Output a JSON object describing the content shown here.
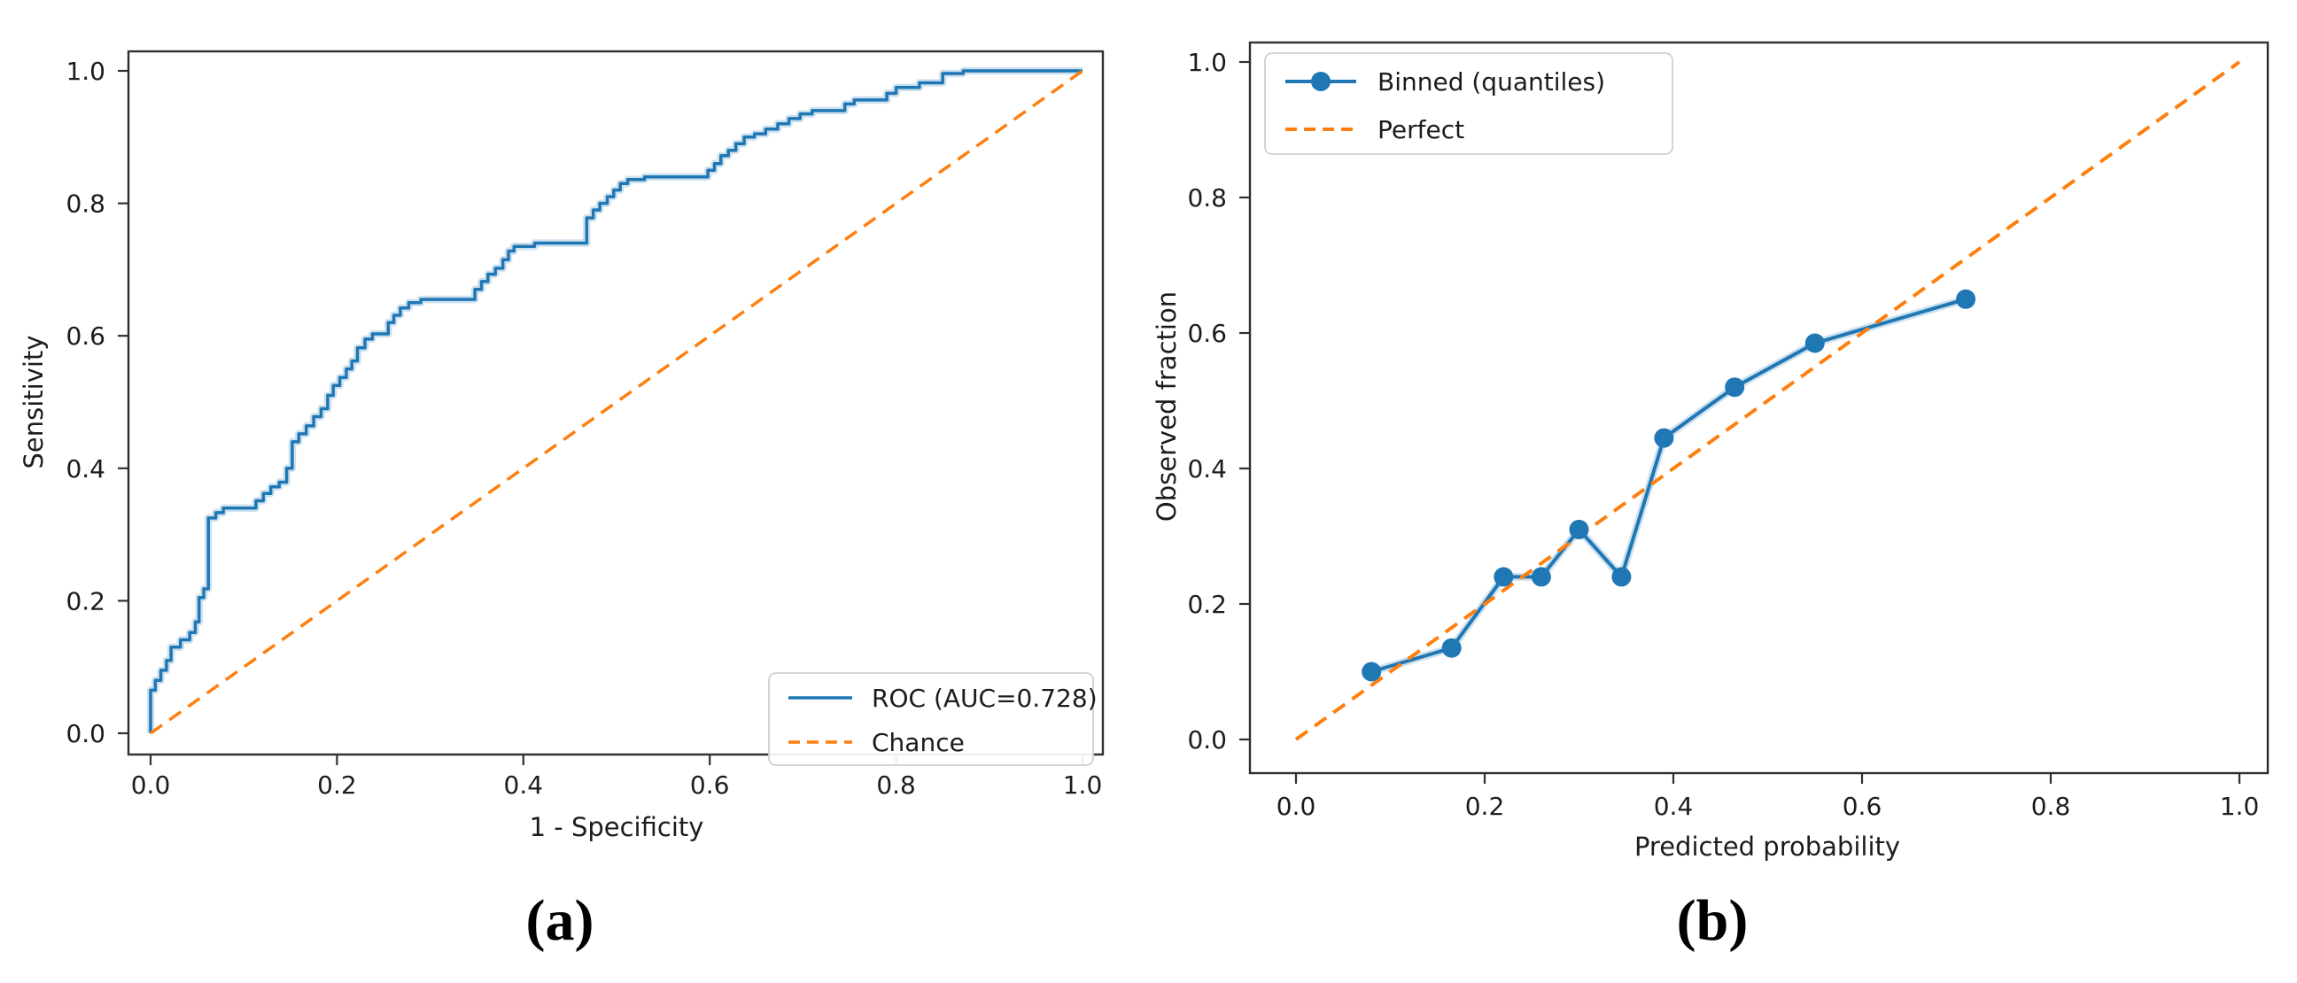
{
  "figure": {
    "caption_a": "(a)",
    "caption_b": "(b)"
  },
  "colors": {
    "blue": "#1f77b4",
    "orange": "#ff7f0e",
    "text": "#1c1c1c",
    "spine": "#2f2f2f"
  },
  "chart_data": [
    {
      "id": "roc",
      "type": "line",
      "xlabel": "1 - Specificity",
      "ylabel": "Sensitivity",
      "xlim": [
        0,
        1
      ],
      "ylim": [
        0,
        1
      ],
      "grid": false,
      "legend_position": "lower right",
      "xticks": [
        0.0,
        0.2,
        0.4,
        0.6,
        0.8,
        1.0
      ],
      "yticks": [
        0.0,
        0.2,
        0.4,
        0.6,
        0.8,
        1.0
      ],
      "x_tick_labels": [
        "0.0",
        "0.2",
        "0.4",
        "0.6",
        "0.8",
        "1.0"
      ],
      "y_tick_labels": [
        "0.0",
        "0.2",
        "0.4",
        "0.6",
        "0.8",
        "1.0"
      ],
      "series": [
        {
          "name": "ROC (AUC=0.728)",
          "style": "solid",
          "color_key": "blue",
          "marker": false,
          "points": [
            [
              0,
              0
            ],
            [
              0,
              0.065
            ],
            [
              0.005,
              0.065
            ],
            [
              0.005,
              0.08
            ],
            [
              0.011,
              0.08
            ],
            [
              0.011,
              0.095
            ],
            [
              0.017,
              0.095
            ],
            [
              0.017,
              0.11
            ],
            [
              0.022,
              0.11
            ],
            [
              0.022,
              0.13
            ],
            [
              0.032,
              0.13
            ],
            [
              0.032,
              0.141
            ],
            [
              0.042,
              0.141
            ],
            [
              0.042,
              0.152
            ],
            [
              0.048,
              0.152
            ],
            [
              0.048,
              0.168
            ],
            [
              0.052,
              0.168
            ],
            [
              0.052,
              0.205
            ],
            [
              0.057,
              0.205
            ],
            [
              0.057,
              0.218
            ],
            [
              0.062,
              0.218
            ],
            [
              0.062,
              0.325
            ],
            [
              0.07,
              0.325
            ],
            [
              0.07,
              0.333
            ],
            [
              0.078,
              0.333
            ],
            [
              0.078,
              0.34
            ],
            [
              0.113,
              0.34
            ],
            [
              0.113,
              0.351
            ],
            [
              0.121,
              0.351
            ],
            [
              0.121,
              0.362
            ],
            [
              0.129,
              0.362
            ],
            [
              0.129,
              0.372
            ],
            [
              0.138,
              0.372
            ],
            [
              0.138,
              0.379
            ],
            [
              0.146,
              0.379
            ],
            [
              0.146,
              0.4
            ],
            [
              0.152,
              0.4
            ],
            [
              0.152,
              0.44
            ],
            [
              0.159,
              0.44
            ],
            [
              0.159,
              0.452
            ],
            [
              0.167,
              0.452
            ],
            [
              0.167,
              0.464
            ],
            [
              0.175,
              0.464
            ],
            [
              0.175,
              0.478
            ],
            [
              0.183,
              0.478
            ],
            [
              0.183,
              0.49
            ],
            [
              0.19,
              0.49
            ],
            [
              0.19,
              0.51
            ],
            [
              0.196,
              0.51
            ],
            [
              0.196,
              0.525
            ],
            [
              0.203,
              0.525
            ],
            [
              0.203,
              0.537
            ],
            [
              0.21,
              0.537
            ],
            [
              0.21,
              0.55
            ],
            [
              0.216,
              0.55
            ],
            [
              0.216,
              0.562
            ],
            [
              0.222,
              0.562
            ],
            [
              0.222,
              0.582
            ],
            [
              0.23,
              0.582
            ],
            [
              0.23,
              0.595
            ],
            [
              0.238,
              0.595
            ],
            [
              0.238,
              0.603
            ],
            [
              0.255,
              0.603
            ],
            [
              0.255,
              0.62
            ],
            [
              0.261,
              0.62
            ],
            [
              0.261,
              0.631
            ],
            [
              0.268,
              0.631
            ],
            [
              0.268,
              0.642
            ],
            [
              0.277,
              0.642
            ],
            [
              0.277,
              0.65
            ],
            [
              0.29,
              0.65
            ],
            [
              0.29,
              0.655
            ],
            [
              0.348,
              0.655
            ],
            [
              0.348,
              0.67
            ],
            [
              0.355,
              0.67
            ],
            [
              0.355,
              0.682
            ],
            [
              0.362,
              0.682
            ],
            [
              0.362,
              0.693
            ],
            [
              0.37,
              0.693
            ],
            [
              0.37,
              0.702
            ],
            [
              0.378,
              0.702
            ],
            [
              0.378,
              0.715
            ],
            [
              0.384,
              0.715
            ],
            [
              0.384,
              0.728
            ],
            [
              0.39,
              0.728
            ],
            [
              0.39,
              0.735
            ],
            [
              0.412,
              0.735
            ],
            [
              0.412,
              0.74
            ],
            [
              0.468,
              0.74
            ],
            [
              0.468,
              0.778
            ],
            [
              0.475,
              0.778
            ],
            [
              0.475,
              0.79
            ],
            [
              0.482,
              0.79
            ],
            [
              0.482,
              0.8
            ],
            [
              0.49,
              0.8
            ],
            [
              0.49,
              0.81
            ],
            [
              0.497,
              0.81
            ],
            [
              0.497,
              0.82
            ],
            [
              0.504,
              0.82
            ],
            [
              0.504,
              0.83
            ],
            [
              0.512,
              0.83
            ],
            [
              0.512,
              0.836
            ],
            [
              0.53,
              0.836
            ],
            [
              0.53,
              0.84
            ],
            [
              0.598,
              0.84
            ],
            [
              0.598,
              0.85
            ],
            [
              0.605,
              0.85
            ],
            [
              0.605,
              0.86
            ],
            [
              0.612,
              0.86
            ],
            [
              0.612,
              0.872
            ],
            [
              0.62,
              0.872
            ],
            [
              0.62,
              0.88
            ],
            [
              0.628,
              0.88
            ],
            [
              0.628,
              0.89
            ],
            [
              0.637,
              0.89
            ],
            [
              0.637,
              0.9
            ],
            [
              0.648,
              0.9
            ],
            [
              0.648,
              0.905
            ],
            [
              0.66,
              0.905
            ],
            [
              0.66,
              0.912
            ],
            [
              0.673,
              0.912
            ],
            [
              0.673,
              0.92
            ],
            [
              0.685,
              0.92
            ],
            [
              0.685,
              0.928
            ],
            [
              0.697,
              0.928
            ],
            [
              0.697,
              0.935
            ],
            [
              0.71,
              0.935
            ],
            [
              0.71,
              0.94
            ],
            [
              0.745,
              0.94
            ],
            [
              0.745,
              0.95
            ],
            [
              0.755,
              0.95
            ],
            [
              0.755,
              0.956
            ],
            [
              0.79,
              0.956
            ],
            [
              0.79,
              0.966
            ],
            [
              0.8,
              0.966
            ],
            [
              0.8,
              0.975
            ],
            [
              0.825,
              0.975
            ],
            [
              0.825,
              0.982
            ],
            [
              0.85,
              0.982
            ],
            [
              0.85,
              0.996
            ],
            [
              0.872,
              0.996
            ],
            [
              0.872,
              1
            ],
            [
              1,
              1
            ]
          ]
        },
        {
          "name": "Chance",
          "style": "dashed",
          "color_key": "orange",
          "marker": false,
          "points": [
            [
              0,
              0
            ],
            [
              1,
              1
            ]
          ]
        }
      ]
    },
    {
      "id": "calibration",
      "type": "line",
      "xlabel": "Predicted probability",
      "ylabel": "Observed fraction",
      "xlim": [
        0,
        1
      ],
      "ylim": [
        0,
        1
      ],
      "grid": false,
      "legend_position": "upper left",
      "xticks": [
        0.0,
        0.2,
        0.4,
        0.6,
        0.8,
        1.0
      ],
      "yticks": [
        0.0,
        0.2,
        0.4,
        0.6,
        0.8,
        1.0
      ],
      "x_tick_labels": [
        "0.0",
        "0.2",
        "0.4",
        "0.6",
        "0.8",
        "1.0"
      ],
      "y_tick_labels": [
        "0.0",
        "0.2",
        "0.4",
        "0.6",
        "0.8",
        "1.0"
      ],
      "series": [
        {
          "name": "Binned (quantiles)",
          "style": "solid",
          "color_key": "blue",
          "marker": true,
          "points": [
            [
              0.08,
              0.1
            ],
            [
              0.165,
              0.135
            ],
            [
              0.22,
              0.24
            ],
            [
              0.26,
              0.24
            ],
            [
              0.3,
              0.31
            ],
            [
              0.345,
              0.24
            ],
            [
              0.39,
              0.445
            ],
            [
              0.465,
              0.52
            ],
            [
              0.55,
              0.585
            ],
            [
              0.71,
              0.65
            ]
          ]
        },
        {
          "name": "Perfect",
          "style": "dashed",
          "color_key": "orange",
          "marker": false,
          "points": [
            [
              0,
              0
            ],
            [
              1,
              1
            ]
          ]
        }
      ]
    }
  ]
}
